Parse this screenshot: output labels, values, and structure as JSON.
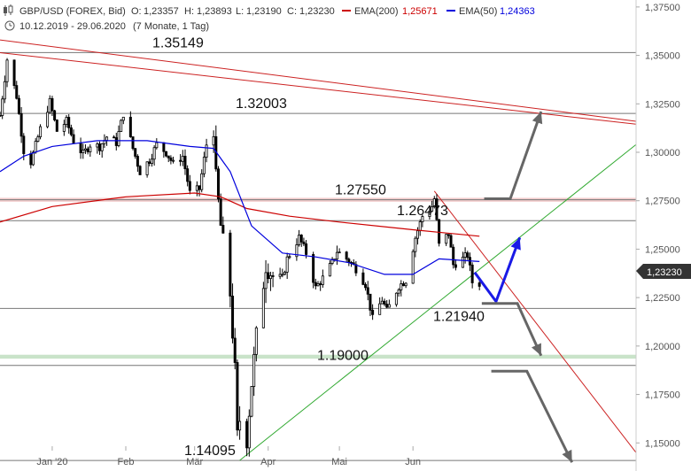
{
  "header": {
    "symbol": "GBP/USD (FOREX, Bid)",
    "open_label": "O:",
    "open": "1,23357",
    "high_label": "H:",
    "high": "1,23893",
    "low_label": "L:",
    "low": "1,23190",
    "close_label": "C:",
    "close": "1,23230",
    "ema200_label": "EMA(200)",
    "ema200": "1,25671",
    "ema50_label": "EMA(50)",
    "ema50": "1,24363",
    "range": "10.12.2019 - 29.06.2020",
    "range_note": "(7 Monate, 1 Tag)"
  },
  "price_badge": "1,23230",
  "chart_data": {
    "type": "candlestick",
    "ylim": [
      1.1355,
      1.3786
    ],
    "y_ticks": [
      1.15,
      1.175,
      1.2,
      1.225,
      1.25,
      1.275,
      1.3,
      1.325,
      1.35,
      1.375
    ],
    "y_tick_labels": [
      "1,15000",
      "1,17500",
      "1,20000",
      "1,22500",
      "1,25000",
      "1,27500",
      "1,30000",
      "1,32500",
      "1,35000",
      "1,37500"
    ],
    "x_ticks": [
      {
        "label": "Jan '20",
        "x": "2020-01-01"
      },
      {
        "label": "Feb",
        "x": "2020-02-01"
      },
      {
        "label": "Mär",
        "x": "2020-03-01"
      },
      {
        "label": "Apr",
        "x": "2020-04-01"
      },
      {
        "label": "Mai",
        "x": "2020-05-01"
      },
      {
        "label": "Jun",
        "x": "2020-06-01"
      }
    ],
    "x_range": [
      "2019-12-10",
      "2020-09-03"
    ],
    "close_anchors": [
      [
        "2019-12-10",
        1.319
      ],
      [
        "2019-12-13",
        1.348
      ],
      [
        "2019-12-17",
        1.329
      ],
      [
        "2019-12-20",
        1.301
      ],
      [
        "2019-12-23",
        1.295
      ],
      [
        "2019-12-27",
        1.312
      ],
      [
        "2019-12-31",
        1.326
      ],
      [
        "2020-01-03",
        1.311
      ],
      [
        "2020-01-07",
        1.316
      ],
      [
        "2020-01-10",
        1.306
      ],
      [
        "2020-01-14",
        1.299
      ],
      [
        "2020-01-17",
        1.304
      ],
      [
        "2020-01-21",
        1.303
      ],
      [
        "2020-01-24",
        1.308
      ],
      [
        "2020-01-28",
        1.305
      ],
      [
        "2020-01-31",
        1.32
      ],
      [
        "2020-02-04",
        1.302
      ],
      [
        "2020-02-07",
        1.29
      ],
      [
        "2020-02-11",
        1.296
      ],
      [
        "2020-02-14",
        1.304
      ],
      [
        "2020-02-18",
        1.3
      ],
      [
        "2020-02-21",
        1.294
      ],
      [
        "2020-02-25",
        1.298
      ],
      [
        "2020-02-28",
        1.279
      ],
      [
        "2020-03-03",
        1.281
      ],
      [
        "2020-03-06",
        1.304
      ],
      [
        "2020-03-09",
        1.313
      ],
      [
        "2020-03-10",
        1.286
      ],
      [
        "2020-03-12",
        1.262
      ],
      [
        "2020-03-16",
        1.227
      ],
      [
        "2020-03-18",
        1.187
      ],
      [
        "2020-03-19",
        1.153
      ],
      [
        "2020-03-20",
        1.162
      ],
      [
        "2020-03-23",
        1.152
      ],
      [
        "2020-03-25",
        1.181
      ],
      [
        "2020-03-27",
        1.205
      ],
      [
        "2020-03-31",
        1.242
      ],
      [
        "2020-04-03",
        1.236
      ],
      [
        "2020-04-07",
        1.235
      ],
      [
        "2020-04-09",
        1.245
      ],
      [
        "2020-04-14",
        1.256
      ],
      [
        "2020-04-17",
        1.248
      ],
      [
        "2020-04-21",
        1.23
      ],
      [
        "2020-04-24",
        1.235
      ],
      [
        "2020-04-28",
        1.243
      ],
      [
        "2020-04-30",
        1.249
      ],
      [
        "2020-05-05",
        1.244
      ],
      [
        "2020-05-08",
        1.24
      ],
      [
        "2020-05-12",
        1.232
      ],
      [
        "2020-05-15",
        1.214
      ],
      [
        "2020-05-19",
        1.224
      ],
      [
        "2020-05-21",
        1.218
      ],
      [
        "2020-05-26",
        1.231
      ],
      [
        "2020-05-29",
        1.234
      ],
      [
        "2020-06-02",
        1.256
      ],
      [
        "2020-06-05",
        1.267
      ],
      [
        "2020-06-09",
        1.272
      ],
      [
        "2020-06-10",
        1.276
      ],
      [
        "2020-06-12",
        1.252
      ],
      [
        "2020-06-16",
        1.258
      ],
      [
        "2020-06-18",
        1.242
      ],
      [
        "2020-06-22",
        1.245
      ],
      [
        "2020-06-24",
        1.247
      ],
      [
        "2020-06-26",
        1.233
      ],
      [
        "2020-06-29",
        1.2323
      ]
    ],
    "ema50": [
      [
        "2019-12-10",
        1.29
      ],
      [
        "2019-12-20",
        1.298
      ],
      [
        "2020-01-01",
        1.303
      ],
      [
        "2020-01-20",
        1.306
      ],
      [
        "2020-02-10",
        1.306
      ],
      [
        "2020-02-28",
        1.303
      ],
      [
        "2020-03-09",
        1.302
      ],
      [
        "2020-03-16",
        1.29
      ],
      [
        "2020-03-25",
        1.262
      ],
      [
        "2020-04-07",
        1.248
      ],
      [
        "2020-04-21",
        1.246
      ],
      [
        "2020-05-05",
        1.243
      ],
      [
        "2020-05-20",
        1.237
      ],
      [
        "2020-06-01",
        1.237
      ],
      [
        "2020-06-12",
        1.245
      ],
      [
        "2020-06-29",
        1.2436
      ]
    ],
    "ema200": [
      [
        "2019-12-10",
        1.264
      ],
      [
        "2020-01-01",
        1.272
      ],
      [
        "2020-02-01",
        1.277
      ],
      [
        "2020-03-01",
        1.279
      ],
      [
        "2020-03-12",
        1.277
      ],
      [
        "2020-03-23",
        1.271
      ],
      [
        "2020-04-10",
        1.267
      ],
      [
        "2020-05-01",
        1.264
      ],
      [
        "2020-06-01",
        1.26
      ],
      [
        "2020-06-29",
        1.2567
      ]
    ],
    "levels": [
      {
        "label": "1.35149",
        "y": 1.35149
      },
      {
        "label": "1.32003",
        "y": 1.32003
      },
      {
        "label": "1.27550",
        "y": 1.2755
      },
      {
        "label": "1.26473",
        "y": 1.26473
      },
      {
        "label": "1.21940",
        "y": 1.2194
      },
      {
        "label": "1.19000",
        "y": 1.19
      },
      {
        "label": "1.14095",
        "y": 1.14095
      }
    ],
    "zones": [
      {
        "from": 1.2745,
        "to": 1.2765,
        "color": "#e8a0a0"
      },
      {
        "from": 1.1935,
        "to": 1.1955,
        "color": "#9ccc9c"
      }
    ],
    "trendlines": [
      {
        "points": [
          [
            "2019-12-10",
            1.3514
          ],
          [
            "2020-09-03",
            1.3145
          ]
        ],
        "color": "#cc2222"
      },
      {
        "points": [
          [
            "2019-12-10",
            1.358
          ],
          [
            "2020-09-03",
            1.316
          ]
        ],
        "color": "#cc2222"
      },
      {
        "points": [
          [
            "2020-03-20",
            1.141
          ],
          [
            "2020-09-03",
            1.304
          ]
        ],
        "color": "#33aa33"
      },
      {
        "points": [
          [
            "2020-06-10",
            1.28
          ],
          [
            "2020-09-03",
            1.145
          ]
        ],
        "color": "#cc2222"
      }
    ],
    "scenario_arrows": [
      {
        "color": "#666666",
        "points": [
          [
            "2020-07-01",
            1.276
          ],
          [
            "2020-07-12",
            1.276
          ],
          [
            "2020-07-25",
            1.321
          ]
        ]
      },
      {
        "color": "#1a1ae6",
        "points": [
          [
            "2020-06-27",
            1.238
          ],
          [
            "2020-07-06",
            1.223
          ],
          [
            "2020-07-16",
            1.256
          ]
        ]
      },
      {
        "color": "#666666",
        "points": [
          [
            "2020-06-30",
            1.222
          ],
          [
            "2020-07-15",
            1.222
          ],
          [
            "2020-07-25",
            1.195
          ]
        ]
      },
      {
        "color": "#666666",
        "points": [
          [
            "2020-07-04",
            1.187
          ],
          [
            "2020-07-19",
            1.187
          ],
          [
            "2020-08-07",
            1.14
          ]
        ]
      }
    ],
    "colors": {
      "ema200": "#cc0000",
      "ema50": "#0000dd",
      "candle": "#000000"
    }
  }
}
